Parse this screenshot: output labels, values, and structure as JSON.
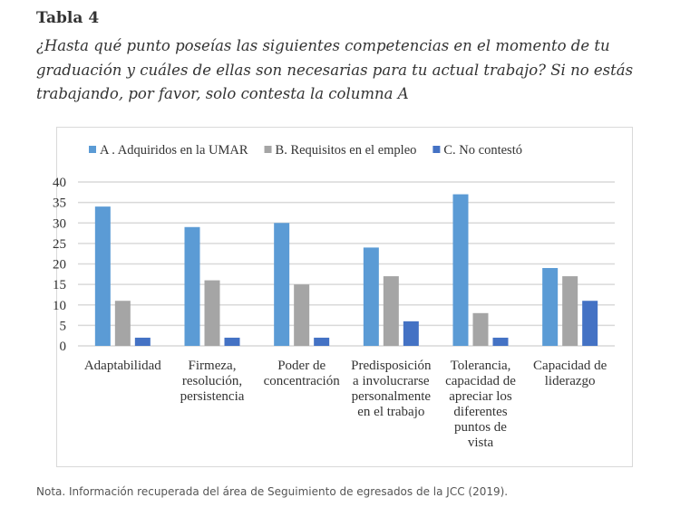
{
  "title": "Tabla 4",
  "question": "¿Hasta qué punto poseías las siguientes competencias en el momento de tu graduación y cuáles de ellas son necesarias para tu actual trabajo? Si no estás trabajando, por favor, solo contesta la columna A",
  "note": "Nota. Información recuperada del área de Seguimiento de egresados de la JCC (2019).",
  "chart_data": {
    "type": "bar",
    "title": "",
    "xlabel": "",
    "ylabel": "",
    "ylim": [
      0,
      40
    ],
    "yticks": [
      0,
      5,
      10,
      15,
      20,
      25,
      30,
      35,
      40
    ],
    "grid": true,
    "legend_placement": "top",
    "categories": [
      [
        "Adaptabilidad"
      ],
      [
        "Firmeza,",
        "resolución,",
        "persistencia"
      ],
      [
        "Poder de",
        "concentración"
      ],
      [
        "Predisposición",
        "a involucrarse",
        "personalmente",
        "en el trabajo"
      ],
      [
        "Tolerancia,",
        "capacidad de",
        "apreciar los",
        "diferentes",
        "puntos de",
        "vista"
      ],
      [
        "Capacidad de",
        "liderazgo"
      ]
    ],
    "series": [
      {
        "name": "A . Adquiridos en la UMAR",
        "color": "#5b9bd5",
        "values": [
          34,
          29,
          30,
          24,
          37,
          19
        ]
      },
      {
        "name": "B. Requisitos en el empleo",
        "color": "#a5a5a5",
        "values": [
          11,
          16,
          15,
          17,
          8,
          17
        ]
      },
      {
        "name": "C. No contestó",
        "color": "#4472c4",
        "values": [
          2,
          2,
          2,
          6,
          2,
          11
        ]
      }
    ]
  }
}
